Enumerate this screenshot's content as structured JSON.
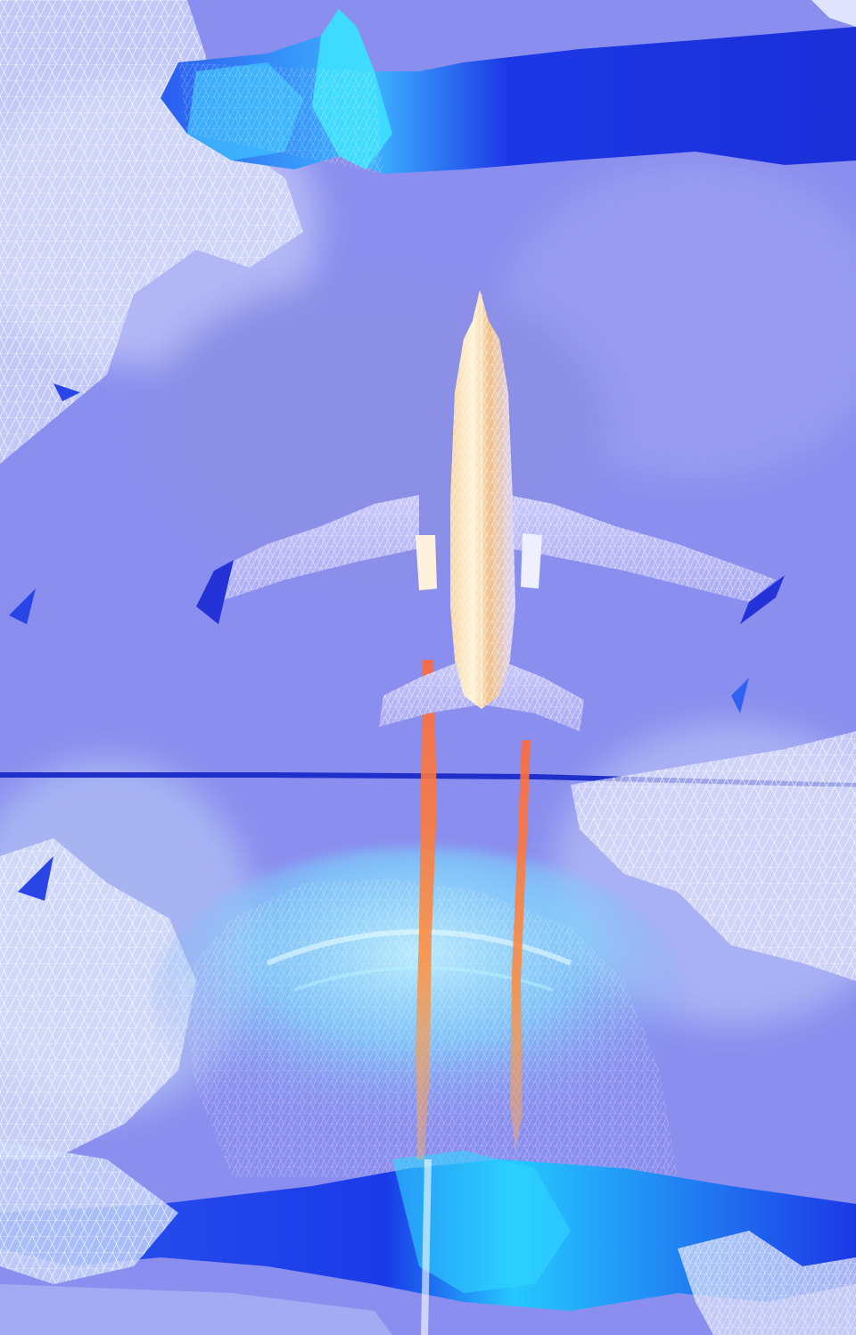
{
  "image": {
    "kind": "stylized-render",
    "subject": "airplane-top-view",
    "palette": {
      "background": "#8a8eee",
      "haze": "#9a9af2",
      "deep_blue_band": "#1c38e6",
      "cyan_highlight": "#35e6ff",
      "mesh_white": "#f2f4ff",
      "fuselage_light": "#fff1d2",
      "fuselage_warm": "#f2b36a",
      "exhaust": "#ff5a2a",
      "horizon_line": "#1f2fc9"
    }
  }
}
